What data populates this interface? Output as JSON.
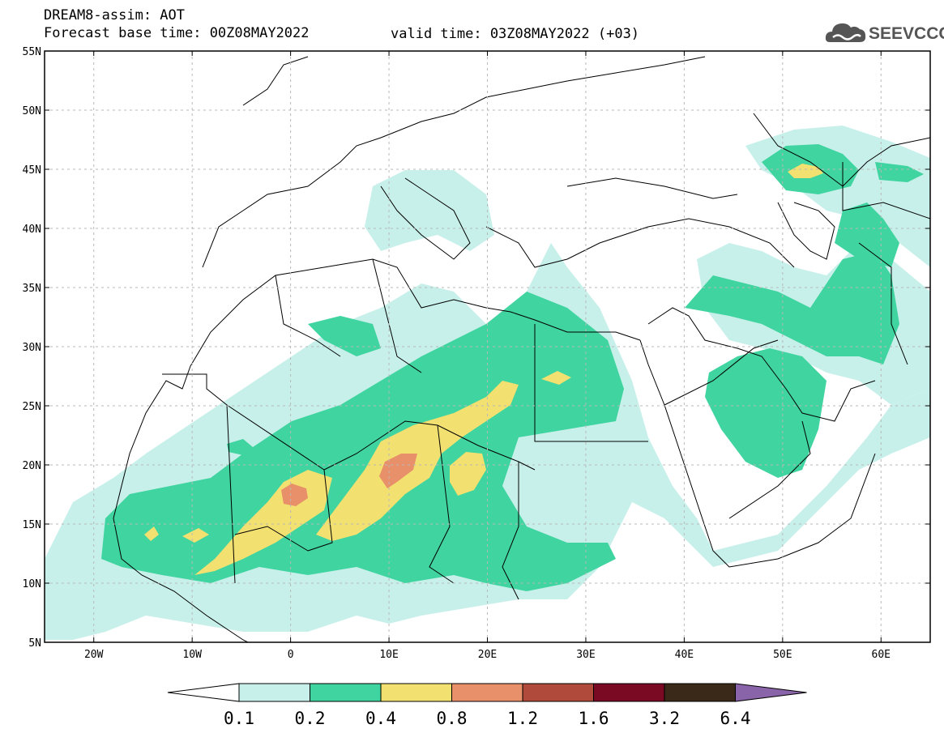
{
  "header": {
    "title_line1": "DREAM8-assim: AOT",
    "title_line2": "Forecast base time: 00Z08MAY2022",
    "valid_time": "valid time: 03Z08MAY2022 (+03)"
  },
  "logo": {
    "text": "SEEVCCC",
    "icon": "cloud-icon"
  },
  "map": {
    "lat_labels": [
      "55N",
      "50N",
      "45N",
      "40N",
      "35N",
      "30N",
      "25N",
      "20N",
      "15N",
      "10N",
      "5N"
    ],
    "lon_labels": [
      "20W",
      "10W",
      "0",
      "10E",
      "20E",
      "30E",
      "40E",
      "50E",
      "60E"
    ],
    "lat_range": [
      5,
      55
    ],
    "lon_range": [
      -25,
      65
    ],
    "gridlines": true
  },
  "colorbar": {
    "labels": [
      "0.1",
      "0.2",
      "0.4",
      "0.8",
      "1.2",
      "1.6",
      "3.2",
      "6.4"
    ],
    "colors": [
      "#ffffff",
      "#c8f0ea",
      "#40d4a0",
      "#f2e070",
      "#e8906a",
      "#b04a3a",
      "#7a0a24",
      "#3a2818",
      "#8a64a8"
    ]
  },
  "field_colors": {
    "c01": "#c8f0ea",
    "c02": "#40d4a0",
    "c04": "#f2e070",
    "c08": "#e8906a"
  }
}
